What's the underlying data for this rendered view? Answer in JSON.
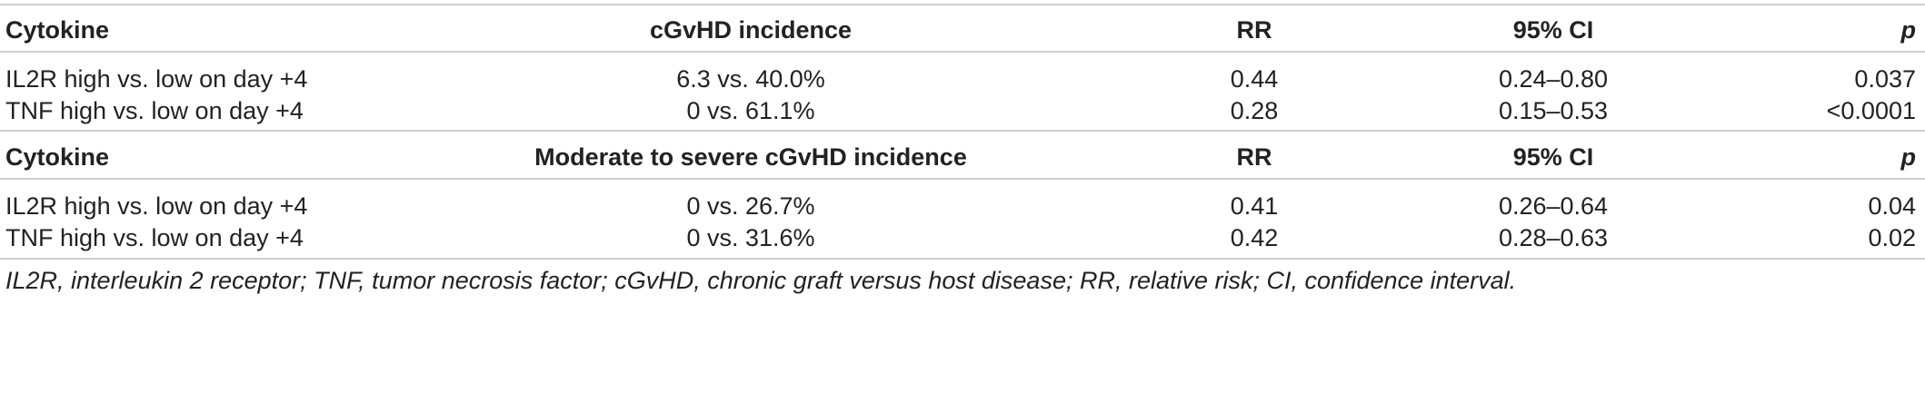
{
  "sections": [
    {
      "header": {
        "cytokine": "Cytokine",
        "incidence": "cGvHD incidence",
        "rr": "RR",
        "ci": "95% CI",
        "p": "p"
      },
      "rows": [
        {
          "cytokine": "IL2R high vs. low on day +4",
          "incidence": "6.3 vs. 40.0%",
          "rr": "0.44",
          "ci": "0.24–0.80",
          "p": "0.037"
        },
        {
          "cytokine": "TNF high vs. low on day +4",
          "incidence": "0 vs. 61.1%",
          "rr": "0.28",
          "ci": "0.15–0.53",
          "p": "<0.0001"
        }
      ]
    },
    {
      "header": {
        "cytokine": "Cytokine",
        "incidence": "Moderate to severe cGvHD incidence",
        "rr": "RR",
        "ci": "95% CI",
        "p": "p"
      },
      "rows": [
        {
          "cytokine": "IL2R high vs. low on day +4",
          "incidence": "0 vs. 26.7%",
          "rr": "0.41",
          "ci": "0.26–0.64",
          "p": "0.04"
        },
        {
          "cytokine": "TNF high vs. low on day +4",
          "incidence": "0 vs. 31.6%",
          "rr": "0.42",
          "ci": "0.28–0.63",
          "p": "0.02"
        }
      ]
    }
  ],
  "footnote": "IL2R, interleukin 2 receptor; TNF, tumor necrosis factor; cGvHD, chronic graft versus host disease; RR, relative risk; CI, confidence interval."
}
